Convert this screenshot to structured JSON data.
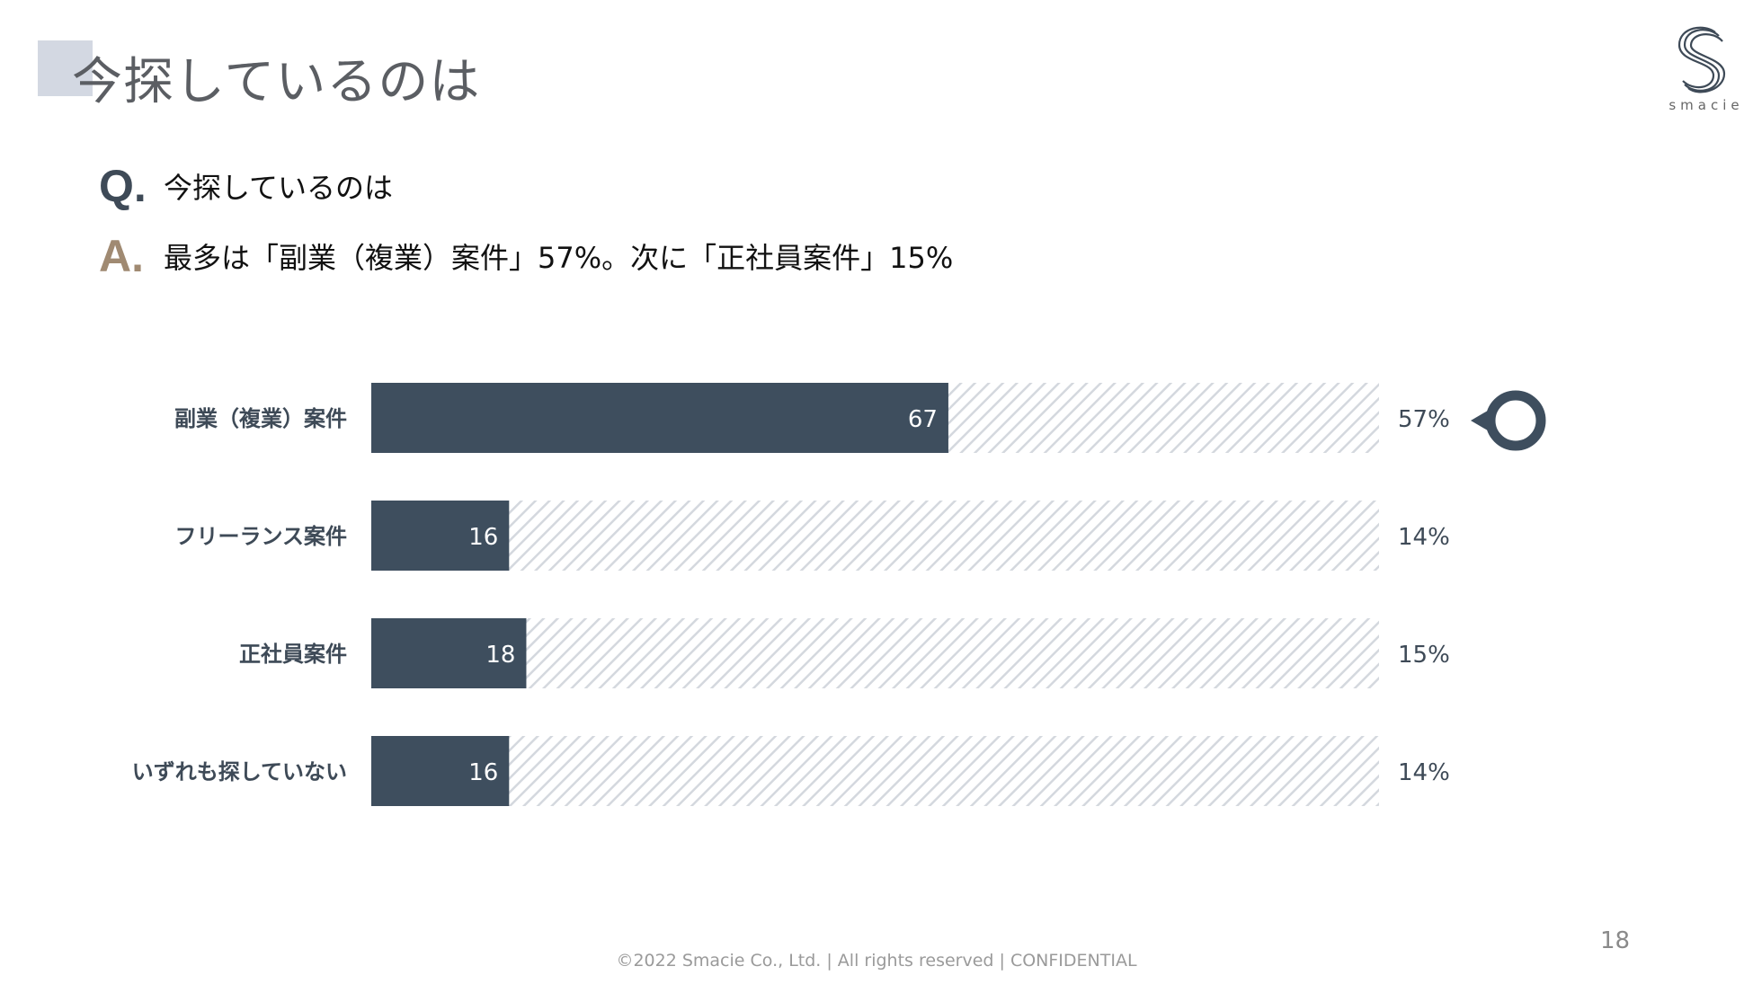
{
  "slide": {
    "title": "今探しているのは",
    "page_number": "18",
    "footer": "©2022 Smacie Co., Ltd. | All rights reserved | CONFIDENTIAL",
    "logo_text": "smacie"
  },
  "qa": {
    "q_mark": "Q.",
    "question": "今探しているのは",
    "a_mark": "A.",
    "answer": "最多は「副業（複業）案件」57%。次に「正社員案件」15%"
  },
  "colors": {
    "bar": "#3e4e5e",
    "hatch": "#d4d8de",
    "accent_square": "#d3d8e2",
    "a_mark": "#a08a72"
  },
  "chart_data": {
    "type": "bar",
    "orientation": "horizontal",
    "stacked_to_total": true,
    "total": 117,
    "categories": [
      "副業（複業）案件",
      "フリーランス案件",
      "正社員案件",
      "いずれも探していない"
    ],
    "values": [
      67,
      16,
      18,
      16
    ],
    "value_labels": [
      "67",
      "16",
      "18",
      "16"
    ],
    "percent_labels": [
      "57%",
      "14%",
      "15%",
      "14%"
    ],
    "highlight_index": 0,
    "highlight_marker": "circle-pointer-icon"
  }
}
